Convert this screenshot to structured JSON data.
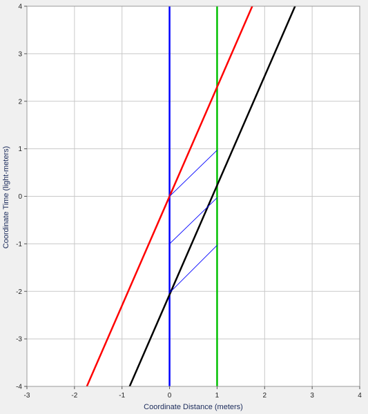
{
  "chart_data": {
    "type": "line",
    "title": "",
    "xlabel": "Coordinate Distance (meters)",
    "ylabel": "Coordinate Time (light-meters)",
    "xlim": [
      -3,
      4
    ],
    "ylim": [
      -4,
      4
    ],
    "xticks": [
      -3,
      -2,
      -1,
      0,
      1,
      2,
      3,
      4
    ],
    "yticks": [
      -4,
      -3,
      -2,
      -1,
      0,
      1,
      2,
      3,
      4
    ],
    "grid": true,
    "background": "#ffffff",
    "series": [
      {
        "color": "#0000ff",
        "width": 2.5,
        "points": [
          [
            0,
            -4
          ],
          [
            0,
            4
          ]
        ]
      },
      {
        "color": "#00c000",
        "width": 2.5,
        "points": [
          [
            1,
            -4
          ],
          [
            1,
            4
          ]
        ]
      },
      {
        "color": "#ff0000",
        "width": 2.5,
        "points": [
          [
            -1.74,
            -4
          ],
          [
            1.74,
            4
          ]
        ]
      },
      {
        "color": "#000000",
        "width": 2.5,
        "points": [
          [
            -0.84,
            -4
          ],
          [
            2.64,
            4
          ]
        ]
      },
      {
        "color": "#0000ff",
        "width": 0.9,
        "points": [
          [
            0,
            0
          ],
          [
            1,
            0.97
          ]
        ]
      },
      {
        "color": "#0000ff",
        "width": 0.9,
        "points": [
          [
            0,
            -1
          ],
          [
            1,
            -0.03
          ]
        ]
      },
      {
        "color": "#0000ff",
        "width": 0.9,
        "points": [
          [
            0,
            -2.03
          ],
          [
            1,
            -1.03
          ]
        ]
      }
    ]
  }
}
